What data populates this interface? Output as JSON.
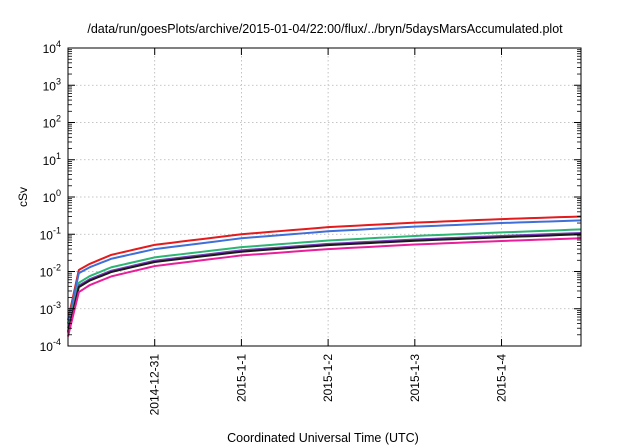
{
  "chart_data": {
    "type": "line",
    "title": "/data/run/goesPlots/archive/2015-01-04/22:00/flux/../bryn/5daysMarsAccumulated.plot",
    "xlabel": "Coordinated Universal Time (UTC)",
    "ylabel": "cSv",
    "y_scale": "log",
    "ylim": [
      0.0001,
      10000
    ],
    "xlim": [
      "2014-12-30 00:00",
      "2015-01-04 22:00"
    ],
    "y_tick_labels": [
      {
        "base": "10",
        "exp": "-4"
      },
      {
        "base": "10",
        "exp": "-3"
      },
      {
        "base": "10",
        "exp": "-2"
      },
      {
        "base": "10",
        "exp": "-1"
      },
      {
        "base": "10",
        "exp": "0"
      },
      {
        "base": "10",
        "exp": "1"
      },
      {
        "base": "10",
        "exp": "2"
      },
      {
        "base": "10",
        "exp": "3"
      },
      {
        "base": "10",
        "exp": "4"
      }
    ],
    "x_ticks": [
      {
        "label": "2014-12-31",
        "date": "2014-12-31 00:00"
      },
      {
        "label": "2015-1-1",
        "date": "2015-01-01 00:00"
      },
      {
        "label": "2015-1-2",
        "date": "2015-01-02 00:00"
      },
      {
        "label": "2015-1-3",
        "date": "2015-01-03 00:00"
      },
      {
        "label": "2015-1-4",
        "date": "2015-01-04 00:00"
      }
    ],
    "grid": true,
    "series": [
      {
        "color": "#e41a1c",
        "x": [
          "2014-12-30 00:00",
          "2014-12-30 03:00",
          "2014-12-30 06:00",
          "2014-12-30 12:00",
          "2014-12-31 00:00",
          "2015-01-01 00:00",
          "2015-01-02 00:00",
          "2015-01-03 00:00",
          "2015-01-04 00:00",
          "2015-01-04 22:00"
        ],
        "y": [
          0.0005,
          0.011,
          0.016,
          0.028,
          0.052,
          0.1,
          0.155,
          0.205,
          0.255,
          0.3
        ]
      },
      {
        "color": "#3f6fd8",
        "x": [
          "2014-12-30 00:00",
          "2014-12-30 03:00",
          "2014-12-30 06:00",
          "2014-12-30 12:00",
          "2014-12-31 00:00",
          "2015-01-01 00:00",
          "2015-01-02 00:00",
          "2015-01-03 00:00",
          "2015-01-04 00:00",
          "2015-01-04 22:00"
        ],
        "y": [
          0.0004,
          0.009,
          0.013,
          0.022,
          0.04,
          0.078,
          0.12,
          0.16,
          0.2,
          0.235
        ]
      },
      {
        "color": "#2bb673",
        "x": [
          "2014-12-30 00:00",
          "2014-12-30 03:00",
          "2014-12-30 06:00",
          "2014-12-30 12:00",
          "2014-12-31 00:00",
          "2015-01-01 00:00",
          "2015-01-02 00:00",
          "2015-01-03 00:00",
          "2015-01-04 00:00",
          "2015-01-04 22:00"
        ],
        "y": [
          0.0003,
          0.005,
          0.0075,
          0.013,
          0.024,
          0.045,
          0.068,
          0.09,
          0.112,
          0.135
        ]
      },
      {
        "color": "#7a3bbd",
        "x": [
          "2014-12-30 00:00",
          "2014-12-30 03:00",
          "2014-12-30 06:00",
          "2014-12-30 12:00",
          "2014-12-31 00:00",
          "2015-01-01 00:00",
          "2015-01-02 00:00",
          "2015-01-03 00:00",
          "2015-01-04 00:00",
          "2015-01-04 22:00"
        ],
        "y": [
          0.00025,
          0.0042,
          0.0062,
          0.0105,
          0.0195,
          0.037,
          0.055,
          0.072,
          0.09,
          0.108
        ]
      },
      {
        "color": "#1a1a1a",
        "x": [
          "2014-12-30 00:00",
          "2014-12-30 03:00",
          "2014-12-30 06:00",
          "2014-12-30 12:00",
          "2014-12-31 00:00",
          "2015-01-01 00:00",
          "2015-01-02 00:00",
          "2015-01-03 00:00",
          "2015-01-04 00:00",
          "2015-01-04 22:00"
        ],
        "y": [
          0.00023,
          0.0038,
          0.0057,
          0.0097,
          0.018,
          0.034,
          0.051,
          0.067,
          0.083,
          0.1
        ]
      },
      {
        "color": "#e81e9a",
        "x": [
          "2014-12-30 00:00",
          "2014-12-30 03:00",
          "2014-12-30 06:00",
          "2014-12-30 12:00",
          "2014-12-31 00:00",
          "2015-01-01 00:00",
          "2015-01-02 00:00",
          "2015-01-03 00:00",
          "2015-01-04 00:00",
          "2015-01-04 22:00"
        ],
        "y": [
          0.00018,
          0.0028,
          0.0043,
          0.0074,
          0.014,
          0.027,
          0.04,
          0.053,
          0.066,
          0.078
        ]
      }
    ]
  }
}
